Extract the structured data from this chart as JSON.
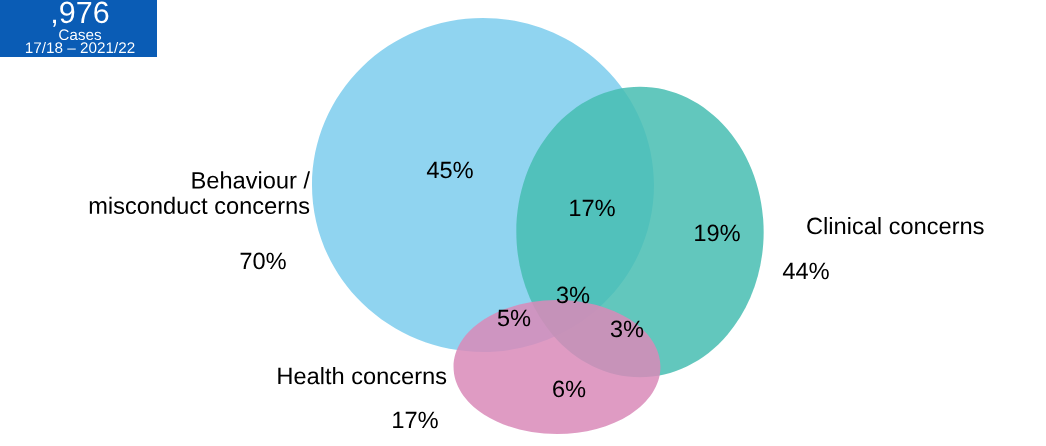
{
  "chart_data": {
    "type": "other",
    "categories": [
      "Behaviour /\nmisconduct concerns",
      "Clinical concerns",
      "Health concerns"
    ],
    "values": [
      70,
      44,
      17
    ],
    "value_labels": [
      "70%",
      "44%",
      "17%"
    ],
    "colors": [
      "#7ccced",
      "#46bdb2",
      "#d98ab8"
    ],
    "annotations": [
      "45%",
      "17%",
      "19%",
      "5%",
      "3%",
      "3%",
      "6%",
      ",976",
      "Cases",
      "17/18 – 2021/22"
    ]
  }
}
